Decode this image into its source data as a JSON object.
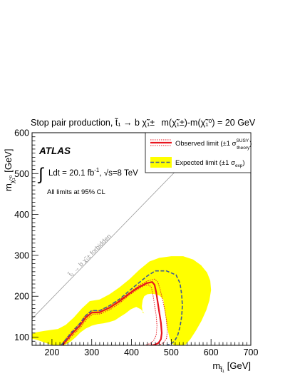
{
  "chart_data": {
    "type": "line",
    "title": "Stop pair production, t̃₁ → b χ̃₁±, m(χ̃₁±)-m(χ̃₁⁰) = 20 GeV",
    "title_parts": {
      "prefix": "Stop pair production, ",
      "decay": "t̃₁ → b χ̃₁±",
      "mass_relation": "m(χ̃₁±)-m(χ̃₁⁰) = 20 GeV"
    },
    "xlabel": "m_t̃₁ [GeV]",
    "xlabel_parts": {
      "main": "m",
      "sub": "t̃₁",
      "unit": "[GeV]"
    },
    "ylabel": "m_χ̃₁⁰ [GeV]",
    "ylabel_parts": {
      "main": "m",
      "sub": "χ̃₁⁰",
      "unit": "[GeV]"
    },
    "xlim": [
      150,
      700
    ],
    "ylim": [
      80,
      600
    ],
    "x_ticks": [
      200,
      300,
      400,
      500,
      600,
      700
    ],
    "y_ticks": [
      100,
      200,
      300,
      400,
      500,
      600
    ],
    "grid": false,
    "legend_position": "top-right",
    "annotations": {
      "experiment": "ATLAS",
      "luminosity_int": "∫",
      "luminosity_text": "Ldt = 20.1 fb",
      "luminosity_exp": "-1",
      "energy_text": ",  √s=8 TeV",
      "cl_text": "All limits at 95% CL",
      "forbidden_text": "t̃₁ → b χ̃₁±  forbidden"
    },
    "legend": {
      "observed": "Observed limit (±1 σ",
      "observed_sup": "SUSY",
      "observed_sub": "theory",
      "expected": "Expected limit (±1 σ",
      "expected_sub": "exp",
      "close_paren": ")"
    },
    "series": [
      {
        "name": "Observed limit",
        "style": "solid",
        "color": "#e8141e",
        "x": [
          225,
          250,
          270,
          285,
          300,
          320,
          345,
          370,
          395,
          418,
          438,
          452,
          458,
          462,
          466,
          470,
          474,
          476,
          474,
          468,
          460,
          452,
          446
        ],
        "y": [
          80,
          108,
          128,
          148,
          160,
          161,
          172,
          188,
          207,
          222,
          232,
          235,
          228,
          210,
          185,
          160,
          135,
          110,
          95,
          86,
          82,
          80,
          80
        ]
      },
      {
        "name": "Observed +1σ theory",
        "style": "dotted",
        "color": "#e8141e",
        "x": [
          222,
          248,
          268,
          283,
          298,
          320,
          345,
          372,
          398,
          420,
          442,
          458,
          466,
          472,
          478,
          484,
          488,
          490,
          488,
          482,
          474,
          466
        ],
        "y": [
          80,
          112,
          132,
          152,
          164,
          165,
          177,
          193,
          211,
          227,
          238,
          242,
          235,
          217,
          192,
          166,
          140,
          114,
          97,
          88,
          83,
          80
        ]
      },
      {
        "name": "Observed -1σ theory",
        "style": "dotted",
        "color": "#e8141e",
        "x": [
          228,
          252,
          272,
          287,
          303,
          322,
          347,
          370,
          393,
          414,
          432,
          444,
          450,
          454,
          458,
          462,
          464,
          462,
          456,
          448,
          440,
          432
        ],
        "y": [
          80,
          104,
          124,
          144,
          156,
          157,
          168,
          183,
          202,
          216,
          226,
          228,
          221,
          203,
          178,
          153,
          128,
          105,
          92,
          85,
          82,
          80
        ]
      },
      {
        "name": "Expected limit",
        "style": "dashed",
        "color": "#3f5a92",
        "x": [
          223,
          250,
          270,
          285,
          300,
          320,
          345,
          370,
          395,
          420,
          440,
          460,
          488,
          512,
          522,
          526,
          528,
          526,
          522,
          516,
          508,
          498,
          488
        ],
        "y": [
          80,
          112,
          133,
          153,
          165,
          165,
          177,
          193,
          214,
          234,
          250,
          262,
          262,
          252,
          232,
          205,
          177,
          150,
          125,
          104,
          90,
          83,
          80
        ]
      }
    ],
    "bands": [
      {
        "name": "Expected ±1σ exp band",
        "color": "#ffff00",
        "x": [
          150,
          160,
          180,
          200,
          215,
          235,
          255,
          275,
          295,
          320,
          345,
          370,
          395,
          420,
          445,
          470,
          500,
          530,
          555,
          575,
          590,
          598,
          600,
          596,
          588,
          576,
          562,
          548,
          536,
          520,
          508,
          500,
          495,
          490,
          486,
          482,
          480,
          470,
          460,
          450,
          440,
          432,
          428,
          426,
          428,
          432,
          424,
          412,
          398,
          385,
          372,
          358,
          345,
          330,
          315,
          300,
          285,
          272,
          260,
          248,
          238,
          228,
          218,
          208,
          196,
          184,
          172,
          160,
          150
        ],
        "y": [
          108,
          112,
          115,
          118,
          120,
          130,
          148,
          170,
          188,
          192,
          205,
          222,
          242,
          265,
          285,
          294,
          298,
          298,
          290,
          276,
          258,
          238,
          215,
          190,
          166,
          140,
          116,
          95,
          82,
          80,
          80,
          86,
          100,
          122,
          150,
          175,
          192,
          202,
          205,
          206,
          205,
          200,
          190,
          176,
          160,
          158,
          168,
          174,
          168,
          158,
          150,
          141,
          137,
          134,
          132,
          128,
          121,
          112,
          100,
          90,
          84,
          80,
          80,
          80,
          82,
          86,
          90,
          94,
          96
        ]
      }
    ],
    "kinematic_line": {
      "name": "forbidden boundary",
      "x": [
        150,
        700
      ],
      "y": [
        145,
        695
      ]
    }
  }
}
